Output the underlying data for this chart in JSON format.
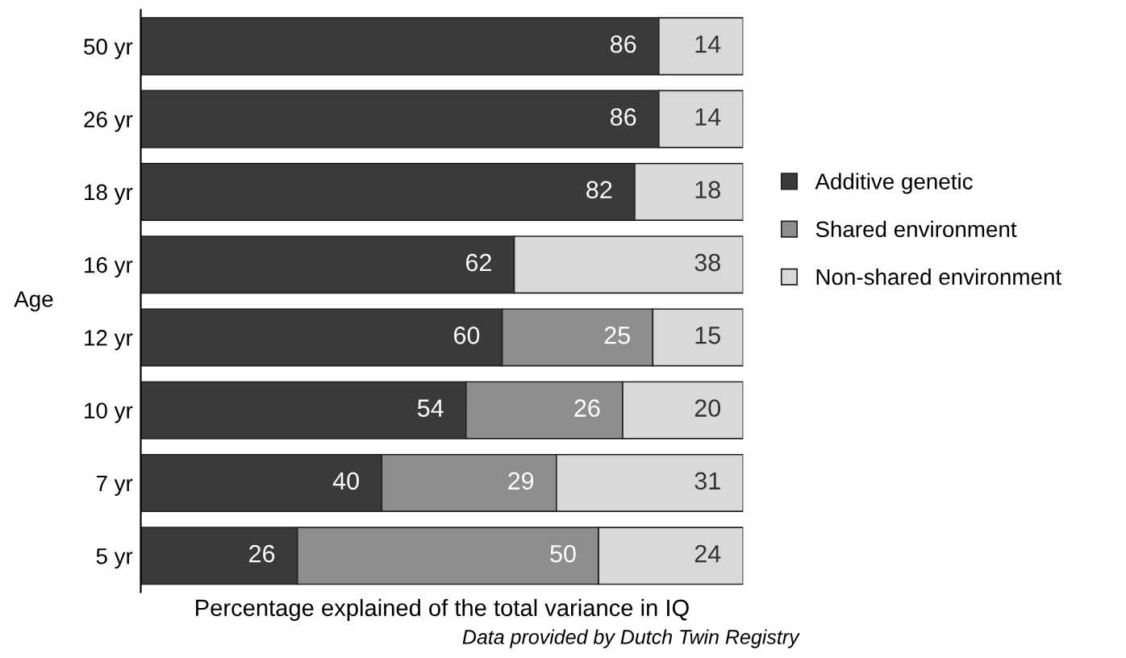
{
  "chart_data": {
    "type": "bar",
    "orientation": "horizontal",
    "stacked": true,
    "data_labels": true,
    "categories": [
      "50 yr",
      "26 yr",
      "18 yr",
      "16 yr",
      "12 yr",
      "10 yr",
      "7 yr",
      "5 yr"
    ],
    "series": [
      {
        "name": "Additive genetic",
        "color": "#3a3a3a",
        "values": [
          86,
          86,
          82,
          62,
          60,
          54,
          40,
          26
        ]
      },
      {
        "name": "Shared environment",
        "color": "#8e8e8e",
        "values": [
          null,
          null,
          null,
          null,
          25,
          26,
          29,
          50
        ]
      },
      {
        "name": "Non-shared environment",
        "color": "#d9d9d9",
        "values": [
          14,
          14,
          18,
          38,
          15,
          20,
          31,
          24
        ]
      }
    ],
    "xlabel": "Percentage explained of the total variance in IQ",
    "ylabel": "Age",
    "annotations": [
      "Data provided by Dutch Twin Registry"
    ],
    "legend": "right",
    "grid": false
  }
}
